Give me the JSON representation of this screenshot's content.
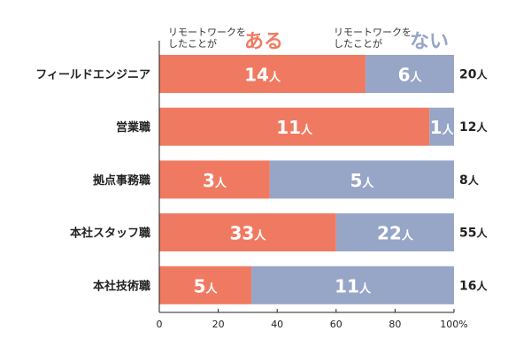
{
  "chart_data": {
    "type": "bar",
    "orientation": "horizontal",
    "stacked": true,
    "normalized_to_percent": true,
    "unit": "人",
    "categories": [
      "フィールドエンジニア",
      "営業職",
      "拠点事務職",
      "本社スタッフ職",
      "本社技術職"
    ],
    "series": [
      {
        "name": "リモートワークをしたことがある",
        "legend_prefix_lines": [
          "リモートワークを",
          "したことが"
        ],
        "legend_emphasis": "ある",
        "color": "#f07a61",
        "values": [
          14,
          11,
          3,
          33,
          5
        ],
        "value_labels": [
          "14",
          "11",
          "3",
          "33",
          "5"
        ]
      },
      {
        "name": "リモートワークをしたことがない",
        "legend_prefix_lines": [
          "リモートワークを",
          "したことが"
        ],
        "legend_emphasis": "ない",
        "color": "#97a5c7",
        "values": [
          6,
          1,
          5,
          22,
          11
        ],
        "value_labels": [
          "6",
          "1",
          "5",
          "22",
          "11"
        ]
      }
    ],
    "totals": [
      "20",
      "12",
      "8",
      "55",
      "16"
    ],
    "xlim": [
      0,
      100
    ],
    "xticks": [
      "0",
      "20",
      "40",
      "60",
      "80",
      "100%"
    ],
    "xtick_values": [
      0,
      20,
      40,
      60,
      80,
      100
    ],
    "grid": false,
    "legend_position": "top"
  }
}
